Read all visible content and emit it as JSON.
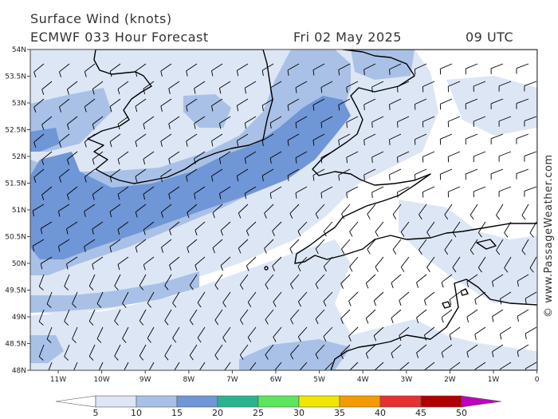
{
  "title": {
    "line1": "Surface Wind (knots)",
    "model_forecast": "ECMWF 033 Hour Forecast",
    "date": "Fri 02 May 2025",
    "time": "09 UTC"
  },
  "credit": "© www.PassageWeather.com",
  "axes": {
    "lat_labels": [
      "54N",
      "53.5N",
      "53N",
      "52.5N",
      "52N",
      "51.5N",
      "51N",
      "50.5N",
      "50N",
      "49.5N",
      "49N",
      "48.5N",
      "48N"
    ],
    "lon_labels": [
      "11W",
      "10W",
      "9W",
      "8W",
      "7W",
      "6W",
      "5W",
      "4W",
      "3W",
      "2W",
      "1W",
      "0"
    ]
  },
  "legend": {
    "ticks": [
      "5",
      "10",
      "15",
      "20",
      "25",
      "30",
      "35",
      "40",
      "45",
      "50"
    ],
    "colors": [
      "#ffffff",
      "#dde6f5",
      "#a9c1e6",
      "#6f96d6",
      "#2ab38e",
      "#5ce65c",
      "#f0e600",
      "#f59a00",
      "#e83030",
      "#b00000",
      "#c000c0"
    ]
  },
  "wind_fill_colors": {
    "light": "#dde6f5",
    "mid": "#a9c1e6",
    "strong": "#6f96d6"
  },
  "coast_color": "#000000",
  "barb_color": "#000000"
}
